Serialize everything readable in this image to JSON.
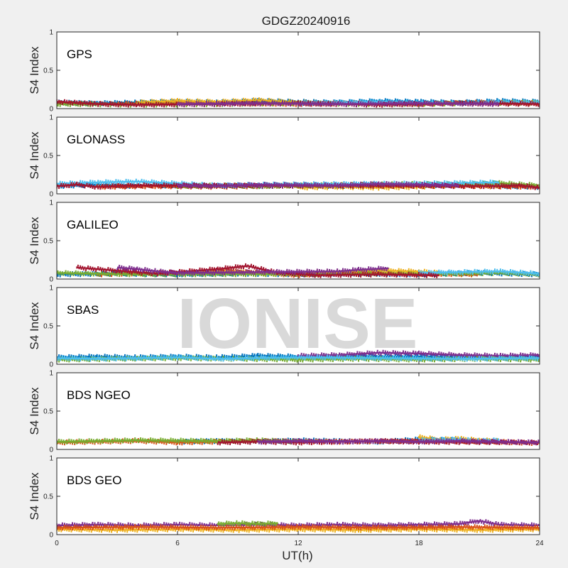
{
  "chart_data": {
    "type": "scatter",
    "title": "GDGZ20240916",
    "xlabel": "UT(h)",
    "ylabel": "S4 Index",
    "watermark": "IONISE",
    "xlim": [
      0,
      24
    ],
    "ylim": [
      0,
      1
    ],
    "xticks": [
      0,
      6,
      12,
      18,
      24
    ],
    "yticks": [
      0,
      0.5,
      1
    ],
    "ytick_labels": [
      "0",
      "0.5",
      "1"
    ],
    "grid": false,
    "colors": [
      "#0072BD",
      "#D95319",
      "#EDB120",
      "#7E2F8E",
      "#77AC30",
      "#4DBEEE",
      "#A2142F"
    ],
    "panels": [
      {
        "label": "GPS",
        "series": [
          {
            "color": "#0072BD",
            "x": [
              0,
              2,
              4,
              6,
              8,
              10,
              12,
              14,
              16,
              18,
              20,
              22,
              24
            ],
            "y": [
              0.08,
              0.07,
              0.08,
              0.09,
              0.08,
              0.1,
              0.09,
              0.08,
              0.1,
              0.09,
              0.08,
              0.1,
              0.09
            ]
          },
          {
            "color": "#D95319",
            "x": [
              0,
              3,
              6,
              9,
              12,
              15,
              18,
              21,
              24
            ],
            "y": [
              0.07,
              0.06,
              0.08,
              0.07,
              0.06,
              0.07,
              0.06,
              0.08,
              0.07
            ]
          },
          {
            "color": "#EDB120",
            "x": [
              4,
              6,
              8,
              10,
              12,
              14
            ],
            "y": [
              0.08,
              0.1,
              0.09,
              0.11,
              0.08,
              0.07
            ]
          },
          {
            "color": "#77AC30",
            "x": [
              0,
              4,
              8,
              12,
              16,
              20,
              24
            ],
            "y": [
              0.06,
              0.05,
              0.06,
              0.07,
              0.06,
              0.07,
              0.08
            ]
          },
          {
            "color": "#4DBEEE",
            "x": [
              12,
              14,
              16,
              18,
              20,
              22,
              24
            ],
            "y": [
              0.07,
              0.08,
              0.09,
              0.08,
              0.07,
              0.09,
              0.08
            ]
          },
          {
            "color": "#A2142F",
            "x": [
              0,
              2,
              4,
              8,
              12,
              16,
              20,
              24
            ],
            "y": [
              0.09,
              0.06,
              0.05,
              0.06,
              0.07,
              0.05,
              0.07,
              0.06
            ]
          },
          {
            "color": "#7E2F8E",
            "x": [
              6,
              10,
              14,
              18,
              22
            ],
            "y": [
              0.06,
              0.07,
              0.06,
              0.07,
              0.06
            ]
          }
        ]
      },
      {
        "label": "GLONASS",
        "series": [
          {
            "color": "#0072BD",
            "x": [
              0,
              2,
              4,
              6,
              8,
              10,
              12,
              14,
              16,
              18,
              20,
              22,
              24
            ],
            "y": [
              0.1,
              0.12,
              0.1,
              0.11,
              0.1,
              0.1,
              0.11,
              0.1,
              0.12,
              0.11,
              0.12,
              0.1,
              0.09
            ]
          },
          {
            "color": "#D95319",
            "x": [
              2,
              5,
              8,
              12,
              15,
              18,
              21,
              24
            ],
            "y": [
              0.09,
              0.1,
              0.09,
              0.11,
              0.1,
              0.12,
              0.1,
              0.09
            ]
          },
          {
            "color": "#EDB120",
            "x": [
              12,
              14,
              16,
              18,
              20,
              22
            ],
            "y": [
              0.08,
              0.09,
              0.08,
              0.09,
              0.12,
              0.1
            ]
          },
          {
            "color": "#77AC30",
            "x": [
              6,
              8,
              10,
              18,
              20,
              22,
              24
            ],
            "y": [
              0.1,
              0.11,
              0.1,
              0.13,
              0.12,
              0.14,
              0.11
            ]
          },
          {
            "color": "#4DBEEE",
            "x": [
              0,
              2,
              4,
              8,
              10,
              20,
              22
            ],
            "y": [
              0.13,
              0.15,
              0.16,
              0.11,
              0.12,
              0.14,
              0.15
            ]
          },
          {
            "color": "#A2142F",
            "x": [
              0,
              1,
              2,
              3,
              4,
              22,
              23,
              24
            ],
            "y": [
              0.1,
              0.12,
              0.09,
              0.1,
              0.11,
              0.1,
              0.11,
              0.08
            ]
          },
          {
            "color": "#7E2F8E",
            "x": [
              6,
              8,
              10,
              14,
              16,
              18,
              20
            ],
            "y": [
              0.11,
              0.1,
              0.12,
              0.11,
              0.13,
              0.12,
              0.11
            ]
          }
        ]
      },
      {
        "label": "GALILEO",
        "series": [
          {
            "color": "#0072BD",
            "x": [
              0,
              3,
              6,
              9,
              12,
              15,
              18,
              21,
              24
            ],
            "y": [
              0.06,
              0.07,
              0.06,
              0.07,
              0.06,
              0.07,
              0.06,
              0.08,
              0.06
            ]
          },
          {
            "color": "#D95319",
            "x": [
              2,
              5,
              8,
              12,
              15,
              18,
              21
            ],
            "y": [
              0.06,
              0.08,
              0.11,
              0.05,
              0.09,
              0.07,
              0.06
            ]
          },
          {
            "color": "#EDB120",
            "x": [
              6,
              8,
              10,
              14,
              16,
              18,
              19
            ],
            "y": [
              0.07,
              0.1,
              0.08,
              0.09,
              0.11,
              0.1,
              0.08
            ]
          },
          {
            "color": "#77AC30",
            "x": [
              0,
              2,
              4,
              20,
              22,
              24
            ],
            "y": [
              0.08,
              0.07,
              0.06,
              0.07,
              0.08,
              0.06
            ]
          },
          {
            "color": "#4DBEEE",
            "x": [
              18,
              20,
              22,
              24
            ],
            "y": [
              0.08,
              0.09,
              0.1,
              0.07
            ]
          },
          {
            "color": "#A2142F",
            "x": [
              1,
              3,
              5,
              8,
              9.5,
              11,
              13,
              16,
              19
            ],
            "y": [
              0.15,
              0.11,
              0.07,
              0.13,
              0.17,
              0.08,
              0.05,
              0.06,
              0.05
            ]
          },
          {
            "color": "#7E2F8E",
            "x": [
              3,
              4,
              5,
              6,
              14,
              15,
              16.5
            ],
            "y": [
              0.15,
              0.13,
              0.1,
              0.08,
              0.1,
              0.12,
              0.14
            ]
          }
        ]
      },
      {
        "label": "SBAS",
        "series": [
          {
            "color": "#0072BD",
            "x": [
              0,
              2,
              4,
              6,
              8,
              10,
              12,
              14,
              16,
              18,
              20,
              22,
              24
            ],
            "y": [
              0.09,
              0.1,
              0.09,
              0.1,
              0.09,
              0.11,
              0.1,
              0.11,
              0.1,
              0.1,
              0.09,
              0.1,
              0.1
            ]
          },
          {
            "color": "#7E2F8E",
            "x": [
              12,
              14,
              16,
              18,
              20,
              22,
              24
            ],
            "y": [
              0.11,
              0.12,
              0.15,
              0.14,
              0.12,
              0.11,
              0.12
            ]
          },
          {
            "color": "#77AC30",
            "x": [
              0,
              3,
              6,
              9,
              12,
              15,
              18,
              21,
              24
            ],
            "y": [
              0.06,
              0.07,
              0.08,
              0.07,
              0.06,
              0.07,
              0.06,
              0.07,
              0.06
            ]
          },
          {
            "color": "#4DBEEE",
            "x": [
              0,
              2,
              4,
              6,
              8,
              10,
              12,
              16,
              20,
              24
            ],
            "y": [
              0.08,
              0.07,
              0.08,
              0.09,
              0.07,
              0.08,
              0.09,
              0.08,
              0.07,
              0.08
            ]
          }
        ]
      },
      {
        "label": "BDS NGEO",
        "series": [
          {
            "color": "#0072BD",
            "x": [
              6,
              8,
              10,
              12,
              14,
              16,
              18,
              20
            ],
            "y": [
              0.1,
              0.11,
              0.1,
              0.12,
              0.11,
              0.1,
              0.13,
              0.12
            ]
          },
          {
            "color": "#D95319",
            "x": [
              0,
              2,
              4,
              6,
              8,
              10,
              14,
              18,
              22,
              24
            ],
            "y": [
              0.09,
              0.1,
              0.11,
              0.09,
              0.1,
              0.11,
              0.1,
              0.11,
              0.1,
              0.08
            ]
          },
          {
            "color": "#EDB120",
            "x": [
              18,
              19,
              20,
              21,
              22
            ],
            "y": [
              0.16,
              0.13,
              0.14,
              0.12,
              0.11
            ]
          },
          {
            "color": "#77AC30",
            "x": [
              0,
              2,
              4,
              8,
              10,
              12
            ],
            "y": [
              0.1,
              0.11,
              0.12,
              0.11,
              0.12,
              0.1
            ]
          },
          {
            "color": "#4DBEEE",
            "x": [
              18,
              20,
              21,
              22
            ],
            "y": [
              0.12,
              0.13,
              0.11,
              0.12
            ]
          },
          {
            "color": "#A2142F",
            "x": [
              8,
              10,
              12,
              14,
              16,
              18,
              24
            ],
            "y": [
              0.09,
              0.1,
              0.09,
              0.1,
              0.11,
              0.1,
              0.09
            ]
          },
          {
            "color": "#7E2F8E",
            "x": [
              10,
              12,
              14,
              16,
              18,
              20,
              22,
              24
            ],
            "y": [
              0.1,
              0.11,
              0.1,
              0.11,
              0.1,
              0.11,
              0.1,
              0.09
            ]
          }
        ]
      },
      {
        "label": "BDS GEO",
        "series": [
          {
            "color": "#7E2F8E",
            "x": [
              0,
              2,
              4,
              6,
              8,
              10,
              12,
              14,
              16,
              18,
              20,
              21,
              22,
              24
            ],
            "y": [
              0.12,
              0.13,
              0.12,
              0.13,
              0.12,
              0.13,
              0.12,
              0.13,
              0.12,
              0.13,
              0.14,
              0.18,
              0.13,
              0.12
            ]
          },
          {
            "color": "#EDB120",
            "x": [
              0,
              3,
              6,
              9,
              12,
              15,
              18,
              21,
              24
            ],
            "y": [
              0.07,
              0.06,
              0.07,
              0.06,
              0.07,
              0.06,
              0.07,
              0.06,
              0.07
            ]
          },
          {
            "color": "#D95319",
            "x": [
              0,
              4,
              8,
              12,
              16,
              20,
              24
            ],
            "y": [
              0.09,
              0.1,
              0.09,
              0.1,
              0.09,
              0.1,
              0.09
            ]
          },
          {
            "color": "#77AC30",
            "x": [
              8,
              9,
              10,
              11
            ],
            "y": [
              0.14,
              0.15,
              0.14,
              0.15
            ]
          }
        ]
      }
    ]
  }
}
